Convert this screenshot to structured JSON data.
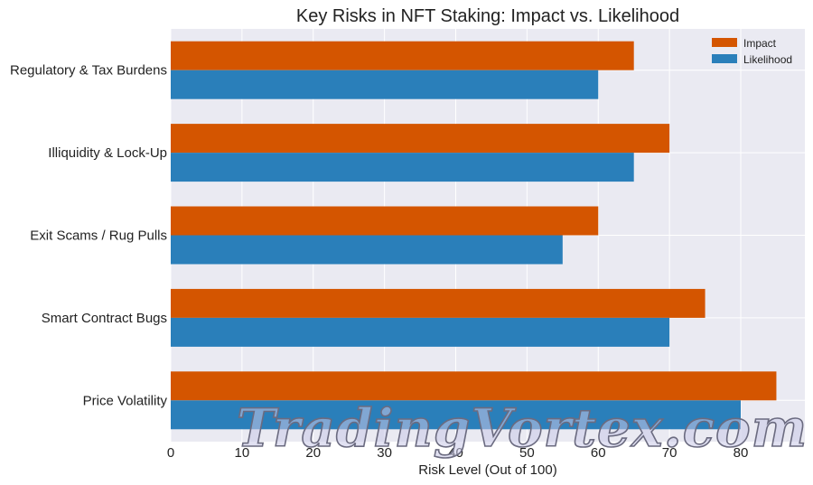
{
  "chart_data": {
    "type": "bar",
    "orientation": "horizontal",
    "title": "Key Risks in NFT Staking: Impact vs. Likelihood",
    "xlabel": "Risk Level (Out of 100)",
    "ylabel": "",
    "categories": [
      "Price Volatility",
      "Smart Contract Bugs",
      "Exit Scams / Rug Pulls",
      "Illiquidity & Lock-Up",
      "Regulatory & Tax Burdens"
    ],
    "series": [
      {
        "name": "Impact",
        "color": "#d45500",
        "values": [
          85,
          75,
          60,
          70,
          65
        ]
      },
      {
        "name": "Likelihood",
        "color": "#2a7fba",
        "values": [
          80,
          70,
          55,
          65,
          60
        ]
      }
    ],
    "xlim": [
      0,
      89
    ],
    "xticks": [
      0,
      10,
      20,
      30,
      40,
      50,
      60,
      70,
      80
    ],
    "grid": true,
    "legend_position": "top-right"
  },
  "watermark": "TradingVortex.com"
}
